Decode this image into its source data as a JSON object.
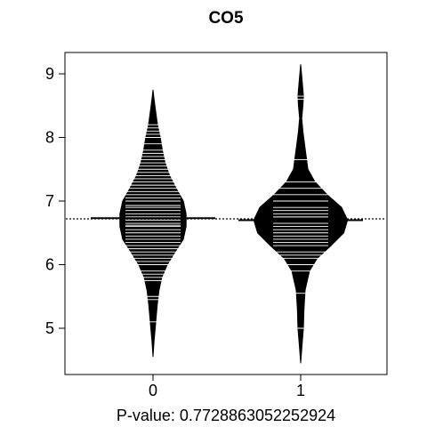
{
  "chart_data": {
    "type": "beanplot",
    "title": "CO5",
    "xlabel": "P-value: 0.7728863052252924",
    "ylabel": "",
    "categories": [
      "0",
      "1"
    ],
    "yticks": [
      "5",
      "6",
      "7",
      "8",
      "9"
    ],
    "ylim": [
      4.3,
      9.3
    ],
    "overall_mean": 6.72,
    "grid": false,
    "legend": "none",
    "colors": {
      "bean": "#000000",
      "line": "#ffffff",
      "axis": "#000000"
    },
    "series": [
      {
        "name": "0",
        "mean": 6.73,
        "range": [
          4.55,
          8.75
        ],
        "density": [
          [
            4.55,
            0.0
          ],
          [
            4.8,
            0.02
          ],
          [
            5.0,
            0.04
          ],
          [
            5.2,
            0.06
          ],
          [
            5.4,
            0.08
          ],
          [
            5.6,
            0.11
          ],
          [
            5.8,
            0.16
          ],
          [
            6.0,
            0.26
          ],
          [
            6.2,
            0.4
          ],
          [
            6.4,
            0.55
          ],
          [
            6.6,
            0.6
          ],
          [
            6.8,
            0.6
          ],
          [
            7.0,
            0.55
          ],
          [
            7.2,
            0.42
          ],
          [
            7.4,
            0.3
          ],
          [
            7.6,
            0.22
          ],
          [
            7.8,
            0.17
          ],
          [
            8.0,
            0.13
          ],
          [
            8.2,
            0.08
          ],
          [
            8.4,
            0.05
          ],
          [
            8.6,
            0.02
          ],
          [
            8.75,
            0.0
          ]
        ],
        "points": [
          5.1,
          5.45,
          5.5,
          5.75,
          5.8,
          5.85,
          5.9,
          6.0,
          6.05,
          6.1,
          6.15,
          6.2,
          6.25,
          6.3,
          6.35,
          6.4,
          6.45,
          6.5,
          6.55,
          6.6,
          6.62,
          6.65,
          6.7,
          6.72,
          6.75,
          6.8,
          6.85,
          6.9,
          6.93,
          7.0,
          7.05,
          7.1,
          7.15,
          7.2,
          7.25,
          7.3,
          7.35,
          7.4,
          7.45,
          7.5,
          7.55,
          7.6,
          7.65,
          7.7,
          7.75,
          7.8,
          7.9,
          8.0,
          8.05,
          8.1,
          8.15,
          8.2
        ]
      },
      {
        "name": "1",
        "mean": 6.7,
        "range": [
          4.45,
          9.15
        ],
        "density": [
          [
            4.45,
            0.0
          ],
          [
            4.8,
            0.03
          ],
          [
            5.0,
            0.05
          ],
          [
            5.3,
            0.06
          ],
          [
            5.6,
            0.08
          ],
          [
            5.9,
            0.16
          ],
          [
            6.1,
            0.3
          ],
          [
            6.3,
            0.55
          ],
          [
            6.5,
            0.78
          ],
          [
            6.7,
            0.85
          ],
          [
            6.9,
            0.74
          ],
          [
            7.1,
            0.48
          ],
          [
            7.3,
            0.26
          ],
          [
            7.5,
            0.13
          ],
          [
            7.7,
            0.1
          ],
          [
            7.9,
            0.07
          ],
          [
            8.1,
            0.04
          ],
          [
            8.3,
            0.02
          ],
          [
            8.5,
            0.04
          ],
          [
            8.65,
            0.05
          ],
          [
            8.85,
            0.03
          ],
          [
            9.15,
            0.0
          ]
        ],
        "points": [
          5.0,
          5.55,
          5.9,
          6.0,
          6.1,
          6.15,
          6.2,
          6.3,
          6.35,
          6.4,
          6.45,
          6.5,
          6.55,
          6.6,
          6.65,
          6.7,
          6.75,
          6.8,
          6.85,
          6.9,
          7.0,
          7.1,
          7.2,
          7.3,
          7.65,
          8.6,
          8.65
        ]
      }
    ]
  }
}
